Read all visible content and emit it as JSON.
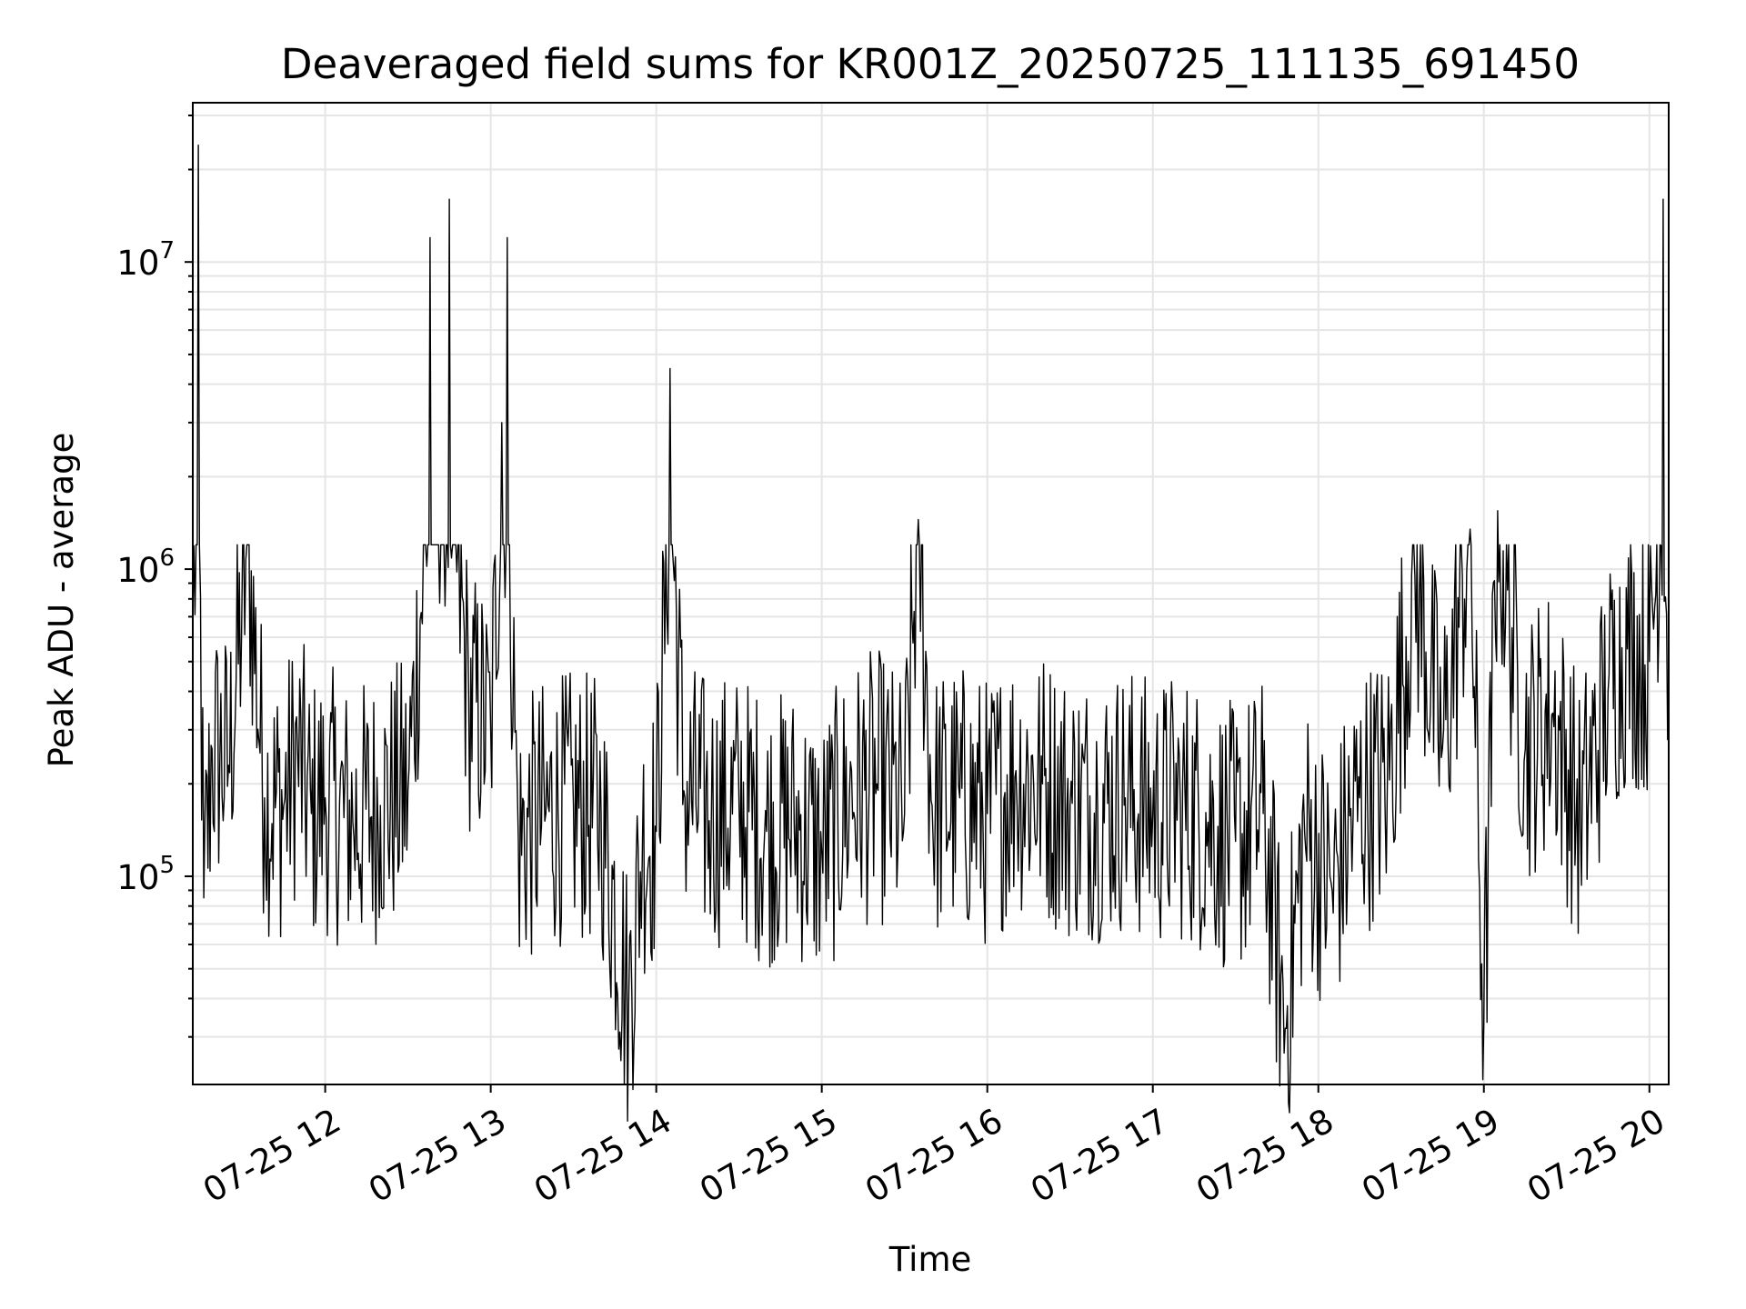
{
  "chart_data": {
    "type": "line",
    "title": "Deaveraged field sums for KR001Z_20250725_111135_691450",
    "xlabel": "Time",
    "ylabel": "Peak ADU - average",
    "yscale": "log",
    "grid": true,
    "line_color": "#000000",
    "grid_color": "#e5e5e5",
    "xlim": [
      "2025-07-25T11:12",
      "2025-07-25T20:07"
    ],
    "ylim": [
      21000,
      33000000
    ],
    "x_ticks": [
      {
        "t": "2025-07-25T12:00",
        "label": "07-25 12"
      },
      {
        "t": "2025-07-25T13:00",
        "label": "07-25 13"
      },
      {
        "t": "2025-07-25T14:00",
        "label": "07-25 14"
      },
      {
        "t": "2025-07-25T15:00",
        "label": "07-25 15"
      },
      {
        "t": "2025-07-25T16:00",
        "label": "07-25 16"
      },
      {
        "t": "2025-07-25T17:00",
        "label": "07-25 17"
      },
      {
        "t": "2025-07-25T18:00",
        "label": "07-25 18"
      },
      {
        "t": "2025-07-25T19:00",
        "label": "07-25 19"
      },
      {
        "t": "2025-07-25T20:00",
        "label": "07-25 20"
      }
    ],
    "y_ticks": [
      {
        "value": 100000,
        "base": "10",
        "exp": "5"
      },
      {
        "value": 1000000,
        "base": "10",
        "exp": "6"
      },
      {
        "value": 10000000,
        "base": "10",
        "exp": "7"
      }
    ],
    "x": [
      "2025-07-25T11:12",
      "2025-07-25T11:14",
      "2025-07-25T11:16",
      "2025-07-25T11:19",
      "2025-07-25T11:25",
      "2025-07-25T11:32",
      "2025-07-25T11:38",
      "2025-07-25T11:45",
      "2025-07-25T11:50",
      "2025-07-25T11:55",
      "2025-07-25T12:00",
      "2025-07-25T12:10",
      "2025-07-25T12:20",
      "2025-07-25T12:30",
      "2025-07-25T12:38",
      "2025-07-25T12:45",
      "2025-07-25T12:52",
      "2025-07-25T13:00",
      "2025-07-25T13:04",
      "2025-07-25T13:06",
      "2025-07-25T13:10",
      "2025-07-25T13:20",
      "2025-07-25T13:30",
      "2025-07-25T13:40",
      "2025-07-25T13:50",
      "2025-07-25T13:55",
      "2025-07-25T14:00",
      "2025-07-25T14:05",
      "2025-07-25T14:10",
      "2025-07-25T14:20",
      "2025-07-25T14:30",
      "2025-07-25T14:40",
      "2025-07-25T14:50",
      "2025-07-25T15:00",
      "2025-07-25T15:10",
      "2025-07-25T15:20",
      "2025-07-25T15:30",
      "2025-07-25T15:35",
      "2025-07-25T15:40",
      "2025-07-25T15:50",
      "2025-07-25T16:00",
      "2025-07-25T16:10",
      "2025-07-25T16:20",
      "2025-07-25T16:30",
      "2025-07-25T16:40",
      "2025-07-25T16:50",
      "2025-07-25T17:00",
      "2025-07-25T17:10",
      "2025-07-25T17:20",
      "2025-07-25T17:30",
      "2025-07-25T17:40",
      "2025-07-25T17:48",
      "2025-07-25T17:55",
      "2025-07-25T18:05",
      "2025-07-25T18:15",
      "2025-07-25T18:25",
      "2025-07-25T18:35",
      "2025-07-25T18:45",
      "2025-07-25T18:55",
      "2025-07-25T19:00",
      "2025-07-25T19:05",
      "2025-07-25T19:15",
      "2025-07-25T19:25",
      "2025-07-25T19:35",
      "2025-07-25T19:45",
      "2025-07-25T19:52",
      "2025-07-25T20:00",
      "2025-07-25T20:05",
      "2025-07-25T20:07"
    ],
    "y": [
      700000,
      24000000,
      85000,
      260000,
      230000,
      1200000,
      180000,
      170000,
      250000,
      160000,
      180000,
      150000,
      170000,
      190000,
      12000000,
      16000000,
      380000,
      300000,
      3000000,
      12000000,
      130000,
      160000,
      170000,
      160000,
      38000,
      130000,
      140000,
      4500000,
      190000,
      160000,
      170000,
      140000,
      150000,
      120000,
      180000,
      200000,
      160000,
      1450000,
      170000,
      180000,
      160000,
      210000,
      200000,
      170000,
      170000,
      180000,
      160000,
      170000,
      150000,
      130000,
      160000,
      32000,
      140000,
      90000,
      180000,
      200000,
      950000,
      260000,
      1350000,
      33000,
      1550000,
      260000,
      340000,
      150000,
      400000,
      550000,
      500000,
      16000000,
      380000
    ]
  }
}
